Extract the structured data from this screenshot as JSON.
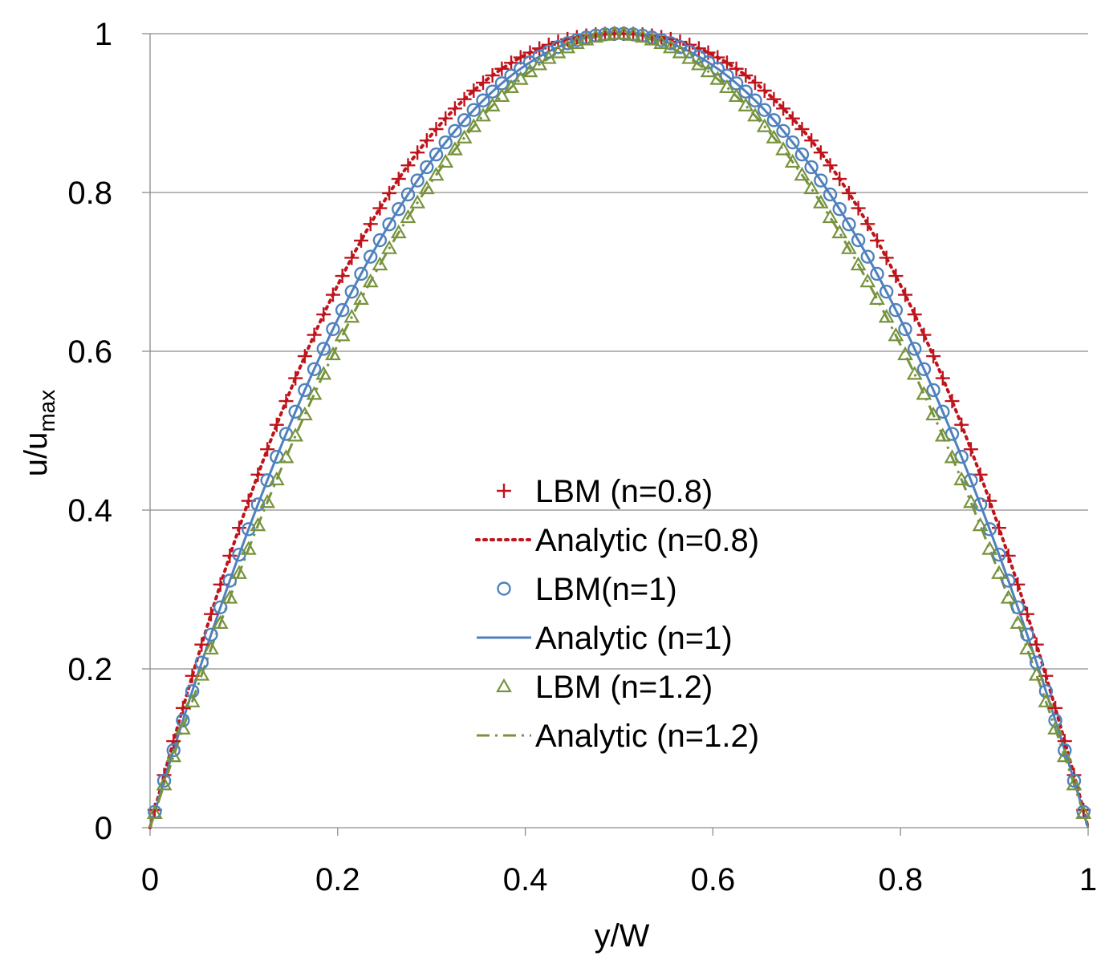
{
  "chart_data": {
    "type": "scatter",
    "title": "",
    "xlabel": "y/W",
    "ylabel_main": "u/u",
    "ylabel_sub": "max",
    "xlim": [
      0,
      1
    ],
    "ylim": [
      0,
      1
    ],
    "grid": "horizontal",
    "x_ticks": [
      "0",
      "0.2",
      "0.4",
      "0.6",
      "0.8",
      "1"
    ],
    "y_ticks": [
      "0",
      "0.2",
      "0.4",
      "0.6",
      "0.8",
      "1"
    ],
    "legend_position": "center",
    "markers_per_series": 100,
    "series": [
      {
        "name": "LBM (n=0.8)",
        "kind": "marker",
        "marker": "plus",
        "color": "#c0141c",
        "n": 0.8
      },
      {
        "name": "Analytic (n=0.8)",
        "kind": "line",
        "dash": "dotted",
        "color": "#c0141c",
        "n": 0.8
      },
      {
        "name": "LBM(n=1)",
        "kind": "marker",
        "marker": "circle",
        "color": "#4f81bd",
        "n": 1.0
      },
      {
        "name": "Analytic (n=1)",
        "kind": "line",
        "dash": "solid",
        "color": "#4f81bd",
        "n": 1.0
      },
      {
        "name": "LBM (n=1.2)",
        "kind": "marker",
        "marker": "triangle",
        "color": "#77933c",
        "n": 1.2
      },
      {
        "name": "Analytic (n=1.2)",
        "kind": "line",
        "dash": "dashdot",
        "color": "#77933c",
        "n": 1.2
      }
    ],
    "formula": "u/umax = 1 - |2*(y/W) - 1|^((n+1)/n)"
  }
}
